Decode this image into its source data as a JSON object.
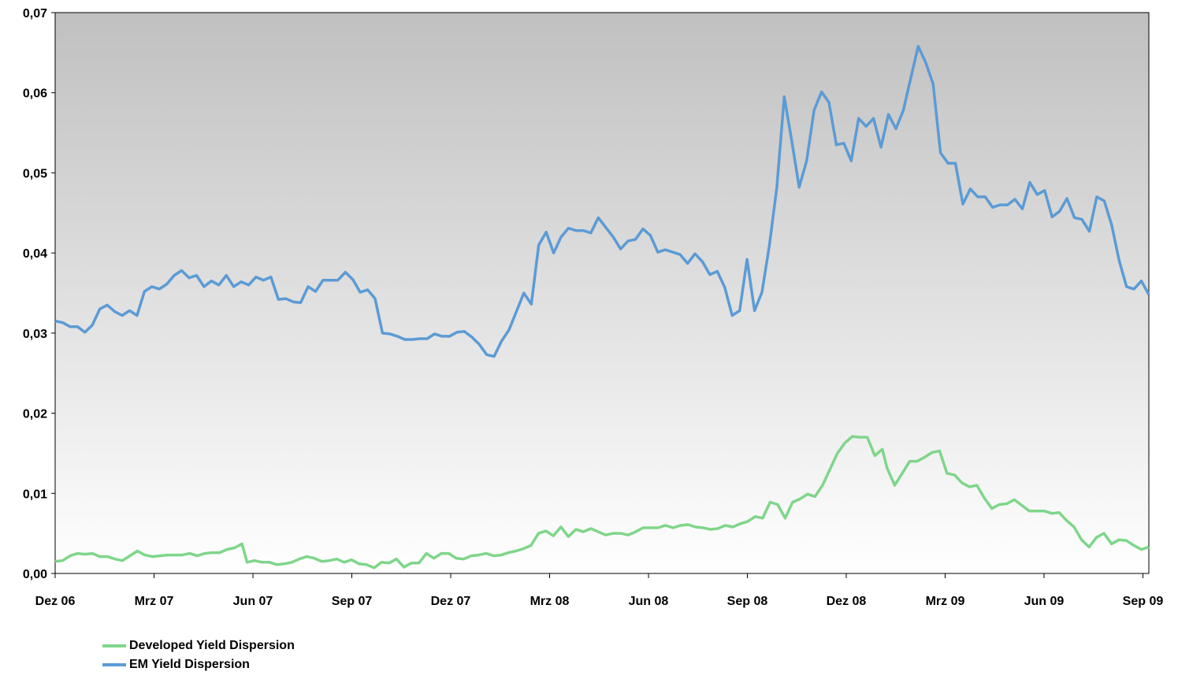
{
  "chart_data": {
    "type": "line",
    "title": "",
    "xlabel": "",
    "ylabel": "",
    "ylim": [
      0,
      0.07
    ],
    "y_ticks": [
      "0,00",
      "0,01",
      "0,02",
      "0,03",
      "0,04",
      "0,05",
      "0,06",
      "0,07"
    ],
    "x_tick_labels": [
      "Dez 06",
      "Mrz 07",
      "Jun 07",
      "Sep 07",
      "Dez 07",
      "Mrz 08",
      "Jun 08",
      "Sep 08",
      "Dez 08",
      "Mrz 09",
      "Jun 09",
      "Sep 09"
    ],
    "x_range_months": [
      0,
      33.3
    ],
    "grid": false,
    "background_gradient": [
      "#c0c0c0",
      "#ffffff"
    ],
    "legend_position": "bottom-left",
    "series": [
      {
        "name": "Developed Yield Dispersion",
        "color": "#7fd68a",
        "points": [
          [
            0,
            0.0015
          ],
          [
            0.3,
            0.0016
          ],
          [
            0.6,
            0.0022
          ],
          [
            0.9,
            0.0025
          ],
          [
            1.2,
            0.0024
          ],
          [
            1.5,
            0.0025
          ],
          [
            1.8,
            0.0021
          ],
          [
            2.1,
            0.0021
          ],
          [
            2.4,
            0.0018
          ],
          [
            2.7,
            0.0016
          ],
          [
            3,
            0.0022
          ],
          [
            3.3,
            0.0028
          ],
          [
            3.6,
            0.0023
          ],
          [
            3.9,
            0.0021
          ],
          [
            4.2,
            0.0022
          ],
          [
            4.5,
            0.0023
          ],
          [
            4.8,
            0.0023
          ],
          [
            5.1,
            0.0023
          ],
          [
            5.4,
            0.0025
          ],
          [
            5.7,
            0.0022
          ],
          [
            6,
            0.0025
          ],
          [
            6.3,
            0.0026
          ],
          [
            6.6,
            0.0026
          ],
          [
            6.9,
            0.003
          ],
          [
            7.2,
            0.0032
          ],
          [
            7.5,
            0.0037
          ],
          [
            7.7,
            0.0014
          ],
          [
            8,
            0.0016
          ],
          [
            8.3,
            0.0014
          ],
          [
            8.6,
            0.0014
          ],
          [
            8.9,
            0.0011
          ],
          [
            9.2,
            0.0012
          ],
          [
            9.5,
            0.0014
          ],
          [
            9.8,
            0.0018
          ],
          [
            10.1,
            0.0021
          ],
          [
            10.4,
            0.0019
          ],
          [
            10.7,
            0.0015
          ],
          [
            11,
            0.0016
          ],
          [
            11.3,
            0.0018
          ],
          [
            11.6,
            0.0014
          ],
          [
            11.9,
            0.0017
          ],
          [
            12.2,
            0.0012
          ],
          [
            12.5,
            0.0011
          ],
          [
            12.8,
            0.0007
          ],
          [
            13.1,
            0.0014
          ],
          [
            13.4,
            0.0013
          ],
          [
            13.7,
            0.0018
          ],
          [
            14,
            0.0008
          ],
          [
            14.3,
            0.0013
          ],
          [
            14.6,
            0.0013
          ],
          [
            14.9,
            0.0025
          ],
          [
            15.2,
            0.0019
          ],
          [
            15.5,
            0.0025
          ],
          [
            15.8,
            0.0025
          ],
          [
            16.1,
            0.0019
          ],
          [
            16.4,
            0.0018
          ],
          [
            16.7,
            0.0022
          ],
          [
            17,
            0.0023
          ],
          [
            17.3,
            0.0025
          ],
          [
            17.6,
            0.0022
          ],
          [
            17.9,
            0.0023
          ],
          [
            18.2,
            0.0026
          ],
          [
            18.5,
            0.0028
          ],
          [
            18.8,
            0.0031
          ],
          [
            19.1,
            0.0035
          ],
          [
            19.4,
            0.005
          ],
          [
            19.7,
            0.0053
          ],
          [
            20,
            0.0047
          ],
          [
            20.3,
            0.0058
          ],
          [
            20.6,
            0.0046
          ],
          [
            20.9,
            0.0055
          ],
          [
            21.2,
            0.0052
          ],
          [
            21.5,
            0.0056
          ],
          [
            21.8,
            0.0052
          ],
          [
            22.1,
            0.0048
          ],
          [
            22.4,
            0.005
          ],
          [
            22.7,
            0.005
          ],
          [
            23,
            0.0048
          ],
          [
            23.3,
            0.0052
          ],
          [
            23.6,
            0.0057
          ],
          [
            23.9,
            0.0057
          ],
          [
            24.2,
            0.0057
          ],
          [
            24.5,
            0.006
          ],
          [
            24.8,
            0.0057
          ],
          [
            25.1,
            0.006
          ],
          [
            25.4,
            0.0061
          ],
          [
            25.7,
            0.0058
          ],
          [
            26,
            0.0057
          ],
          [
            26.3,
            0.0055
          ],
          [
            26.6,
            0.0056
          ],
          [
            26.9,
            0.006
          ],
          [
            27.2,
            0.0058
          ],
          [
            27.5,
            0.0062
          ],
          [
            27.8,
            0.0065
          ],
          [
            28.1,
            0.0071
          ],
          [
            28.4,
            0.0069
          ],
          [
            28.7,
            0.0089
          ],
          [
            29,
            0.0086
          ],
          [
            29.3,
            0.0069
          ],
          [
            29.6,
            0.0089
          ],
          [
            29.9,
            0.0093
          ],
          [
            30.2,
            0.0099
          ],
          [
            30.5,
            0.0096
          ],
          [
            30.8,
            0.011
          ],
          [
            31.1,
            0.013
          ],
          [
            31.4,
            0.015
          ],
          [
            31.7,
            0.0163
          ],
          [
            32,
            0.0171
          ],
          [
            32.3,
            0.017
          ],
          [
            32.6,
            0.017
          ],
          [
            32.9,
            0.0147
          ],
          [
            33.2,
            0.0155
          ]
        ]
      },
      {
        "name": "EM Yield Dispersion",
        "color": "#5b9bd5",
        "points": []
      }
    ]
  }
}
